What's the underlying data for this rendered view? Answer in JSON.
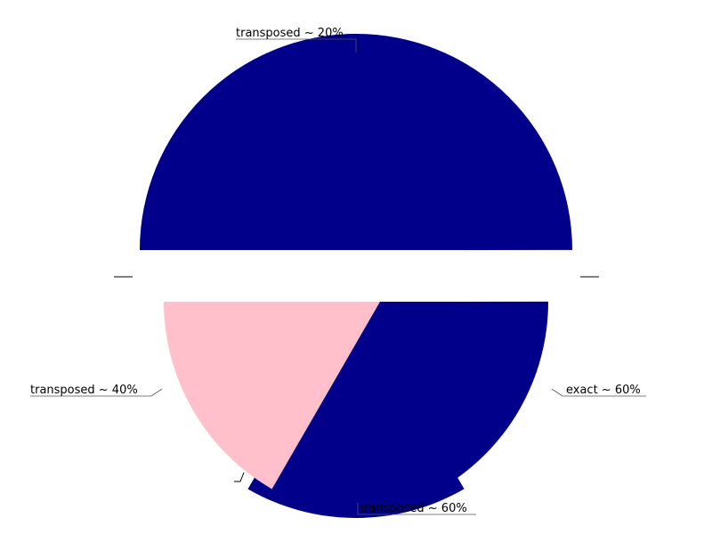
{
  "chart_data": {
    "type": "pie",
    "title": "",
    "legend": "none",
    "slices": [
      {
        "label": "transposed ~ 20%",
        "value": 50,
        "color": "#00008B"
      },
      {
        "label": "transposed ~ 40%",
        "value": 16.67,
        "color": "#00008B"
      },
      {
        "label": "transposed ~ 60%",
        "value": 16.67,
        "color": "#00008B"
      },
      {
        "label": "exact ~ 60%",
        "value": 16.67,
        "color": "#FFC0CB"
      }
    ]
  }
}
